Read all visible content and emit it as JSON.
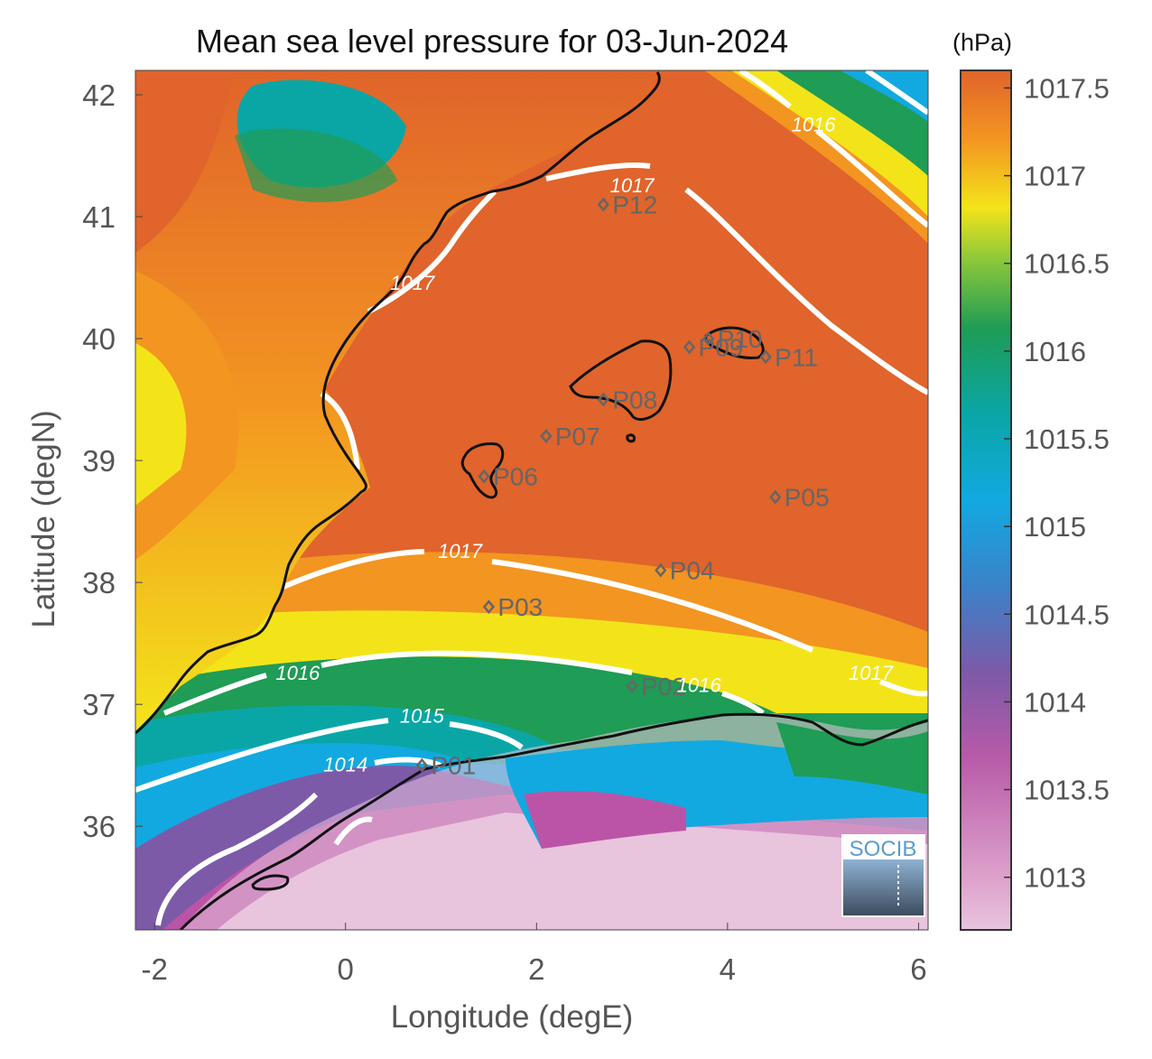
{
  "title": "Mean sea level pressure for 03-Jun-2024",
  "colorbar_unit": "(hPa)",
  "xlabel": "Longitude (degE)",
  "ylabel": "Latitude (degN)",
  "logo_text": "SOCIB",
  "colors": {
    "high": "#e0642b",
    "orange": "#f39521",
    "yellow": "#f3e41a",
    "green": "#1f9c55",
    "teal": "#0aa6a6",
    "blue": "#12a9e0",
    "purple": "#7c5aa8",
    "magenta": "#bb54a6",
    "pink": "#e8c4dd",
    "coast": "#111111",
    "contour": "#ffffff"
  },
  "chart_data": {
    "type": "heatmap",
    "title": "Mean sea level pressure for 03-Jun-2024",
    "xlabel": "Longitude (degE)",
    "ylabel": "Latitude (degN)",
    "xlim": [
      -2.2,
      6.1
    ],
    "ylim": [
      35.15,
      42.2
    ],
    "x_ticks": [
      -2,
      0,
      2,
      4,
      6
    ],
    "y_ticks": [
      36,
      37,
      38,
      39,
      40,
      41,
      42
    ],
    "colorbar": {
      "label": "(hPa)",
      "range": [
        1012.7,
        1017.6
      ],
      "ticks": [
        1013,
        1013.5,
        1014,
        1014.5,
        1015,
        1015.5,
        1016,
        1016.5,
        1017,
        1017.5
      ]
    },
    "contour_labels": [
      {
        "text": "1017",
        "lon": 3.0,
        "lat": 41.2
      },
      {
        "text": "1017",
        "lon": 0.7,
        "lat": 40.4
      },
      {
        "text": "1017",
        "lon": 1.2,
        "lat": 38.2
      },
      {
        "text": "1017",
        "lon": 5.5,
        "lat": 37.2
      },
      {
        "text": "1016",
        "lon": 4.9,
        "lat": 41.7
      },
      {
        "text": "1016",
        "lon": -0.5,
        "lat": 37.2
      },
      {
        "text": "1016",
        "lon": 3.7,
        "lat": 37.1
      },
      {
        "text": "1015",
        "lon": 0.8,
        "lat": 36.85
      },
      {
        "text": "1014",
        "lon": 0.0,
        "lat": 36.45
      }
    ],
    "stations": [
      {
        "name": "P01",
        "lon": 0.8,
        "lat": 36.5
      },
      {
        "name": "P02",
        "lon": 3.0,
        "lat": 37.15
      },
      {
        "name": "P03",
        "lon": 1.5,
        "lat": 37.8
      },
      {
        "name": "P04",
        "lon": 3.3,
        "lat": 38.1
      },
      {
        "name": "P05",
        "lon": 4.5,
        "lat": 38.7
      },
      {
        "name": "P06",
        "lon": 1.45,
        "lat": 38.87
      },
      {
        "name": "P07",
        "lon": 2.1,
        "lat": 39.2
      },
      {
        "name": "P08",
        "lon": 2.7,
        "lat": 39.5
      },
      {
        "name": "P09",
        "lon": 3.6,
        "lat": 39.93
      },
      {
        "name": "P10",
        "lon": 3.8,
        "lat": 40.0
      },
      {
        "name": "P11",
        "lon": 4.4,
        "lat": 39.85
      },
      {
        "name": "P12",
        "lon": 2.7,
        "lat": 41.1
      }
    ]
  }
}
